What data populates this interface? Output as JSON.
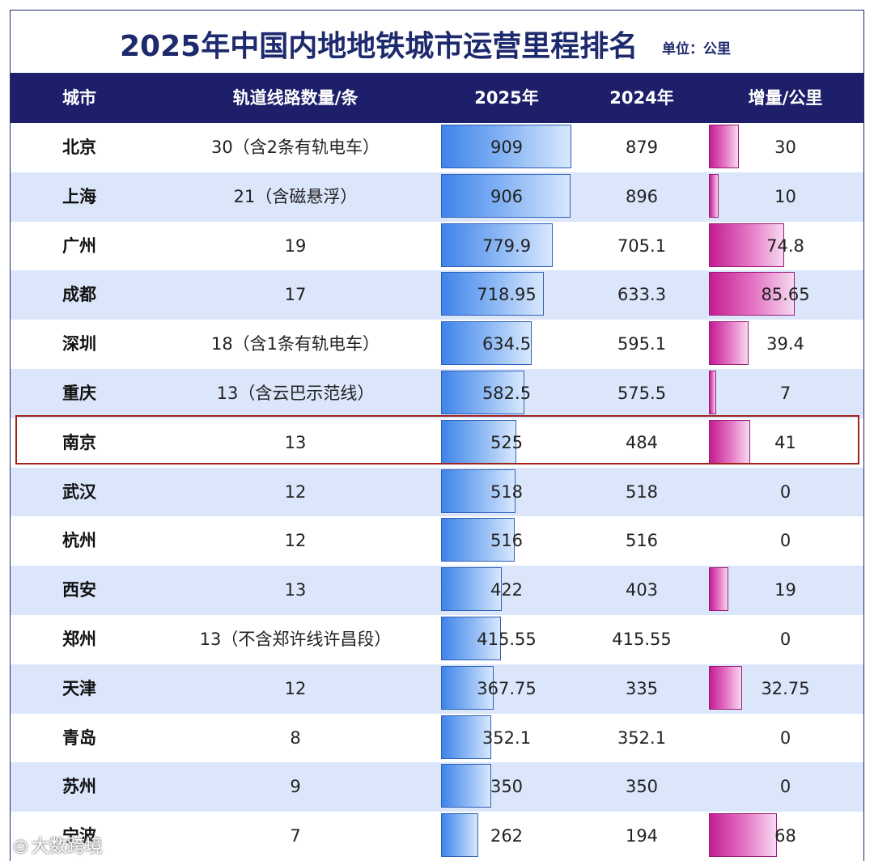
{
  "title": "2025年中国内地地铁城市运营里程排名",
  "unit": "单位：公里",
  "headers": {
    "city": "城市",
    "lines": "轨道线路数量/条",
    "y2025": "2025年",
    "y2024": "2024年",
    "increase": "增量/公里"
  },
  "watermark": "大数跨境",
  "colors": {
    "header_bg": "#1e1f6b",
    "bar_2025": "#3e84ea",
    "bar_increase": "#c41d92",
    "highlight": "#a3221e"
  },
  "chart_data": {
    "type": "table",
    "title": "2025年中国内地地铁城市运营里程排名",
    "unit": "单位：公里",
    "columns": [
      "城市",
      "轨道线路数量/条",
      "2025年",
      "2024年",
      "增量/公里"
    ],
    "bar_max_2025": 909,
    "bar_max_increase": 85.65,
    "highlighted_city": "南京",
    "rows": [
      {
        "city": "北京",
        "lines": "30（含2条有轨电车）",
        "y2025": "909",
        "y2024": "879",
        "increase": "30"
      },
      {
        "city": "上海",
        "lines": "21（含磁悬浮）",
        "y2025": "906",
        "y2024": "896",
        "increase": "10"
      },
      {
        "city": "广州",
        "lines": "19",
        "y2025": "779.9",
        "y2024": "705.1",
        "increase": "74.8"
      },
      {
        "city": "成都",
        "lines": "17",
        "y2025": "718.95",
        "y2024": "633.3",
        "increase": "85.65"
      },
      {
        "city": "深圳",
        "lines": "18（含1条有轨电车）",
        "y2025": "634.5",
        "y2024": "595.1",
        "increase": "39.4"
      },
      {
        "city": "重庆",
        "lines": "13（含云巴示范线）",
        "y2025": "582.5",
        "y2024": "575.5",
        "increase": "7"
      },
      {
        "city": "南京",
        "lines": "13",
        "y2025": "525",
        "y2024": "484",
        "increase": "41"
      },
      {
        "city": "武汉",
        "lines": "12",
        "y2025": "518",
        "y2024": "518",
        "increase": "0"
      },
      {
        "city": "杭州",
        "lines": "12",
        "y2025": "516",
        "y2024": "516",
        "increase": "0"
      },
      {
        "city": "西安",
        "lines": "13",
        "y2025": "422",
        "y2024": "403",
        "increase": "19"
      },
      {
        "city": "郑州",
        "lines": "13（不含郑许线许昌段）",
        "y2025": "415.55",
        "y2024": "415.55",
        "increase": "0"
      },
      {
        "city": "天津",
        "lines": "12",
        "y2025": "367.75",
        "y2024": "335",
        "increase": "32.75"
      },
      {
        "city": "青岛",
        "lines": "8",
        "y2025": "352.1",
        "y2024": "352.1",
        "increase": "0"
      },
      {
        "city": "苏州",
        "lines": "9",
        "y2025": "350",
        "y2024": "350",
        "increase": "0"
      },
      {
        "city": "宁波",
        "lines": "7",
        "y2025": "262",
        "y2024": "194",
        "increase": "68"
      }
    ]
  }
}
